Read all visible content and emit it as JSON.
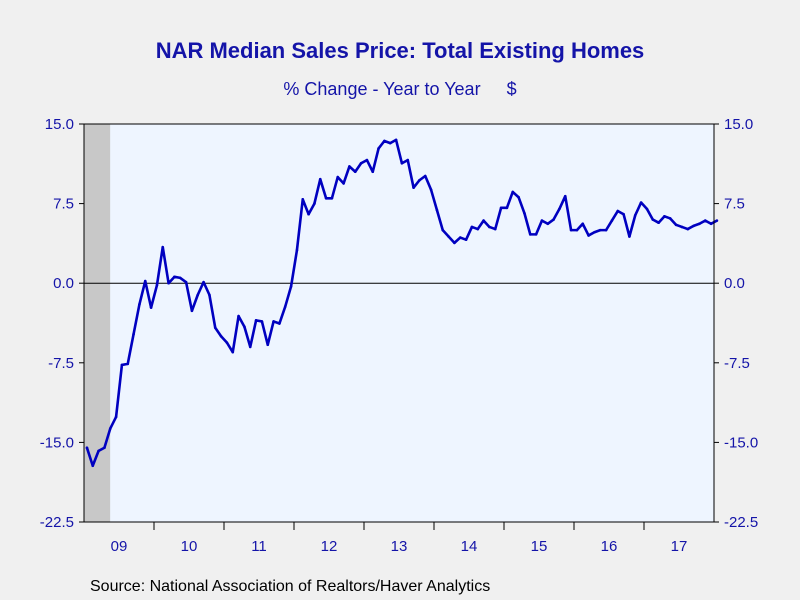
{
  "chart_data": {
    "type": "line",
    "title": "NAR Median Sales Price: Total Existing Homes",
    "subtitle": "% Change - Year to Year",
    "unit": "$",
    "source": "Source:  National Association of Realtors/Haver Analytics",
    "ylim": [
      -22.5,
      15.0
    ],
    "y_ticks": [
      "15.0",
      "7.5",
      "0.0",
      "-7.5",
      "-15.0",
      "-22.5"
    ],
    "y_tick_values": [
      15.0,
      7.5,
      0.0,
      -7.5,
      -15.0,
      -22.5
    ],
    "x_start": "2009-01",
    "x_end": "2017-12",
    "x_tick_labels": [
      "09",
      "10",
      "11",
      "12",
      "13",
      "14",
      "15",
      "16",
      "17"
    ],
    "recession_shading": {
      "from": "2009-01",
      "to": "2009-06"
    },
    "zero_line": true,
    "series": [
      {
        "name": "",
        "color": "#0000c0",
        "values": [
          -15.5,
          -17.2,
          -15.8,
          -15.5,
          -13.7,
          -12.6,
          -7.7,
          -7.6,
          -4.8,
          -2.0,
          0.2,
          -2.3,
          -0.2,
          3.4,
          0.0,
          0.6,
          0.5,
          0.1,
          -2.6,
          -1.1,
          0.1,
          -1.1,
          -4.2,
          -5.0,
          -5.6,
          -6.5,
          -3.1,
          -4.1,
          -6.0,
          -3.5,
          -3.6,
          -5.8,
          -3.6,
          -3.8,
          -2.2,
          -0.3,
          3.1,
          7.9,
          6.5,
          7.5,
          9.8,
          8.0,
          8.0,
          10.0,
          9.4,
          11.0,
          10.5,
          11.3,
          11.6,
          10.5,
          12.7,
          13.4,
          13.2,
          13.5,
          11.3,
          11.6,
          9.0,
          9.7,
          10.1,
          8.8,
          6.9,
          5.0,
          4.4,
          3.8,
          4.3,
          4.1,
          5.3,
          5.1,
          5.9,
          5.3,
          5.1,
          7.1,
          7.1,
          8.6,
          8.1,
          6.6,
          4.6,
          4.6,
          5.9,
          5.6,
          6.0,
          7.0,
          8.2,
          5.0,
          5.0,
          5.6,
          4.5,
          4.8,
          5.0,
          5.0,
          5.9,
          6.8,
          6.5,
          4.4,
          6.4,
          7.6,
          7.0,
          6.0,
          5.7,
          6.3,
          6.1,
          5.5,
          5.3,
          5.1,
          5.4,
          5.6,
          5.9,
          5.6,
          5.9
        ]
      }
    ]
  }
}
